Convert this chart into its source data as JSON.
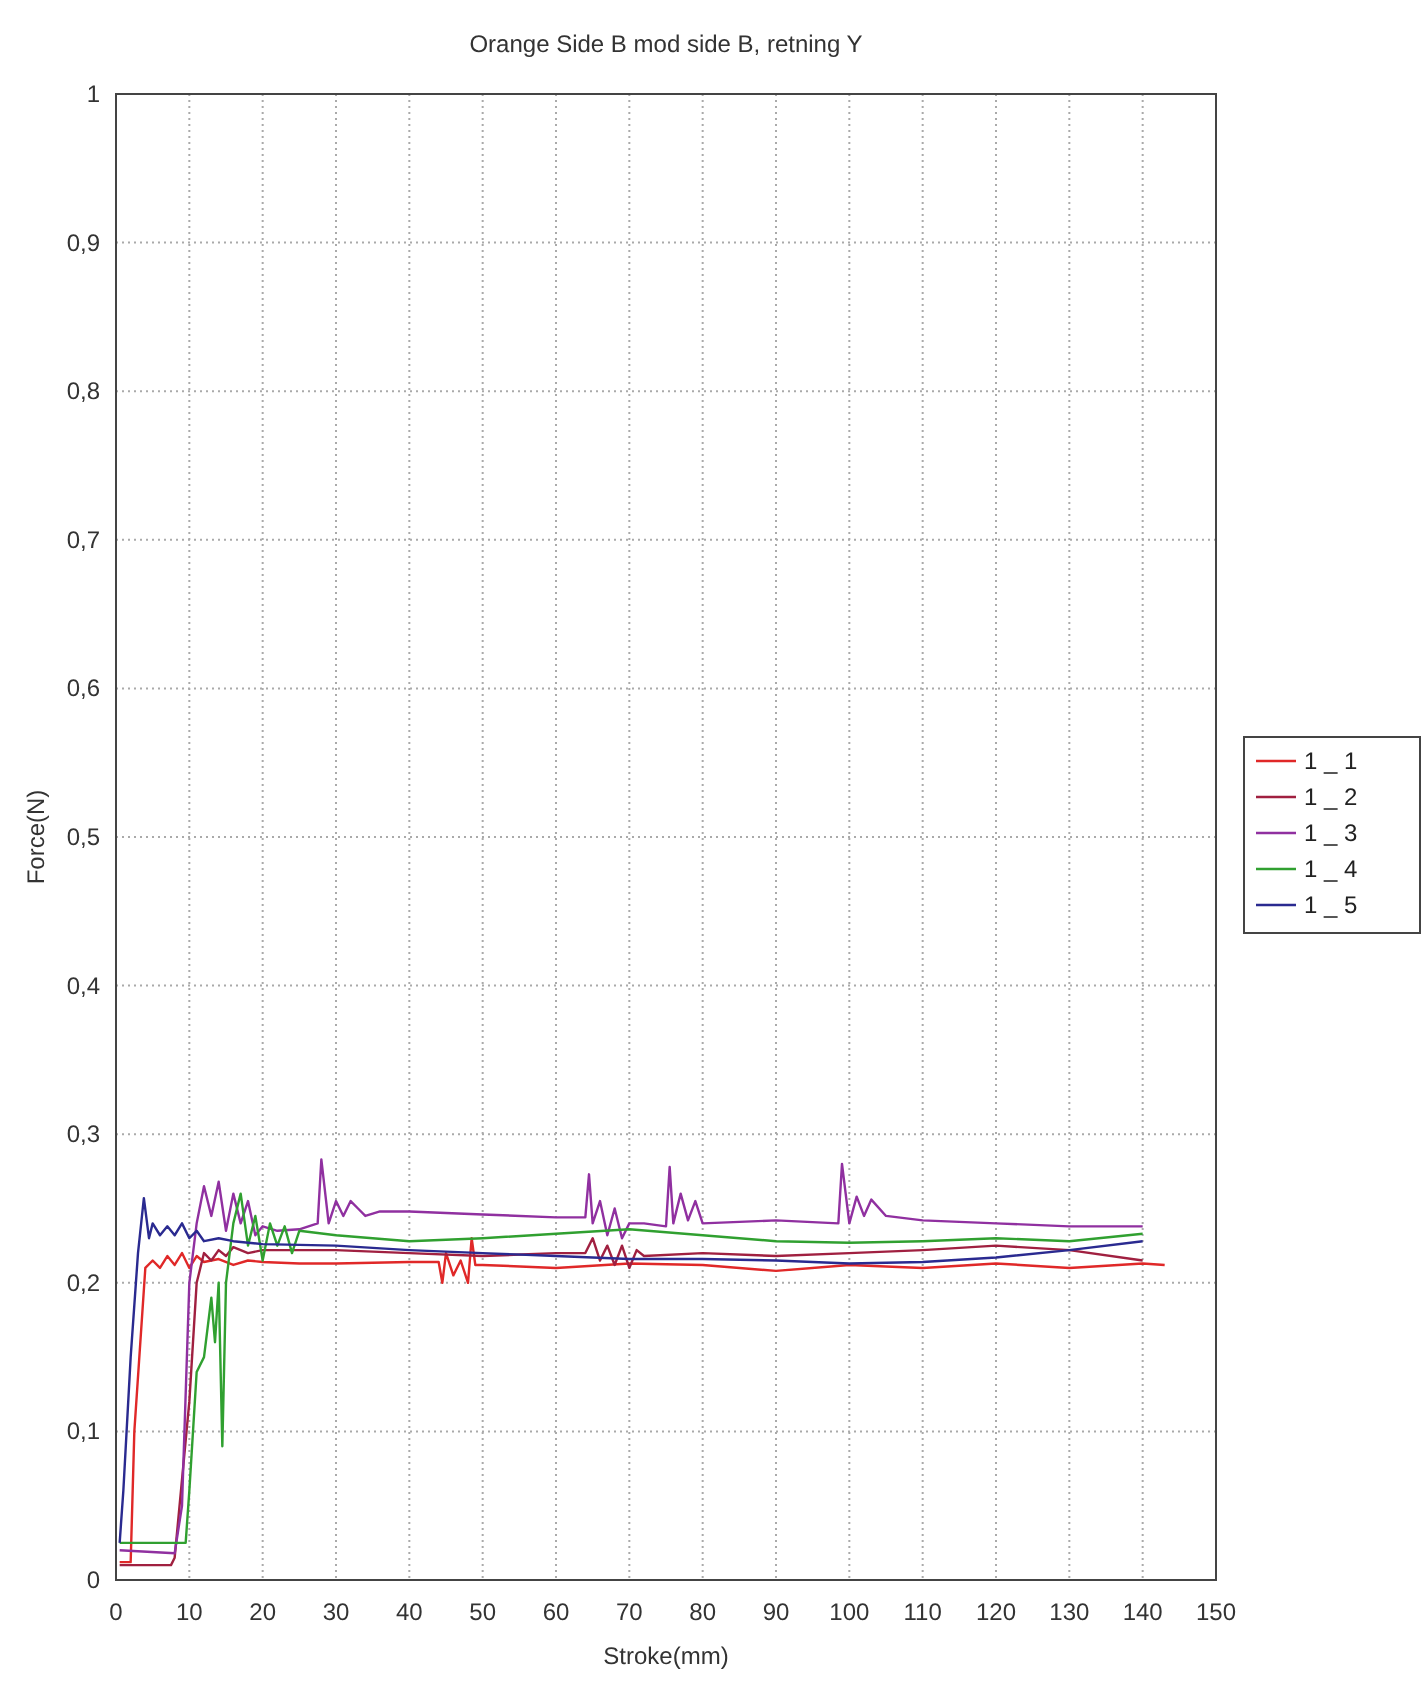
{
  "chart_data": {
    "type": "line",
    "title": "Orange Side B mod side B, retning Y",
    "xlabel": "Stroke(mm)",
    "ylabel": "Force(N)",
    "xlim": [
      0,
      150
    ],
    "xticks": [
      0,
      10,
      20,
      30,
      40,
      50,
      60,
      70,
      80,
      90,
      100,
      110,
      120,
      130,
      140,
      150
    ],
    "ylim": [
      0,
      1
    ],
    "yticks": [
      0,
      {
        "value": 0.1,
        "label": "0,1"
      },
      {
        "value": 0.2,
        "label": "0,2"
      },
      {
        "value": 0.3,
        "label": "0,3"
      },
      {
        "value": 0.4,
        "label": "0,4"
      },
      {
        "value": 0.5,
        "label": "0,5"
      },
      {
        "value": 0.6,
        "label": "0,6"
      },
      {
        "value": 0.7,
        "label": "0,7"
      },
      {
        "value": 0.8,
        "label": "0,8"
      },
      {
        "value": 0.9,
        "label": "0,9"
      },
      1
    ],
    "grid": true,
    "legend": "right",
    "line_style": "solid",
    "series": [
      {
        "name": "1 _ 1",
        "color": "#e02828",
        "x": [
          0.5,
          2,
          2.5,
          4,
          5,
          6,
          7,
          8,
          9,
          10,
          11,
          12,
          14,
          16,
          18,
          20,
          25,
          30,
          40,
          44,
          44.5,
          45,
          46,
          47,
          48,
          48.5,
          49,
          50,
          60,
          70,
          80,
          90,
          100,
          110,
          120,
          130,
          140,
          143
        ],
        "values": [
          0.012,
          0.012,
          0.1,
          0.21,
          0.215,
          0.21,
          0.218,
          0.212,
          0.22,
          0.21,
          0.218,
          0.214,
          0.216,
          0.212,
          0.215,
          0.214,
          0.213,
          0.213,
          0.214,
          0.214,
          0.2,
          0.22,
          0.205,
          0.215,
          0.2,
          0.23,
          0.212,
          0.212,
          0.21,
          0.213,
          0.212,
          0.208,
          0.212,
          0.21,
          0.213,
          0.21,
          0.213,
          0.212
        ]
      },
      {
        "name": "1 _ 2",
        "color": "#a02040",
        "x": [
          0.5,
          7.5,
          8,
          10,
          11,
          12,
          13,
          14,
          15,
          16,
          18,
          20,
          25,
          30,
          40,
          50,
          60,
          64,
          65,
          66,
          67,
          68,
          69,
          70,
          71,
          72,
          80,
          90,
          100,
          110,
          120,
          130,
          140
        ],
        "values": [
          0.01,
          0.01,
          0.015,
          0.12,
          0.2,
          0.22,
          0.215,
          0.222,
          0.218,
          0.224,
          0.22,
          0.222,
          0.222,
          0.222,
          0.22,
          0.218,
          0.22,
          0.22,
          0.23,
          0.215,
          0.225,
          0.212,
          0.225,
          0.21,
          0.222,
          0.218,
          0.22,
          0.218,
          0.22,
          0.222,
          0.225,
          0.222,
          0.215
        ]
      },
      {
        "name": "1 _ 3",
        "color": "#9030a0",
        "x": [
          0.5,
          8,
          9,
          10,
          11,
          12,
          13,
          14,
          15,
          16,
          17,
          18,
          19,
          20,
          22,
          25,
          27.5,
          28,
          29,
          30,
          31,
          32,
          33,
          34,
          36,
          40,
          50,
          60,
          64,
          64.5,
          65,
          66,
          67,
          68,
          69,
          70,
          72,
          75,
          75.5,
          76,
          77,
          78,
          79,
          80,
          90,
          98.5,
          99,
          100,
          101,
          102,
          103,
          105,
          110,
          120,
          130,
          140
        ],
        "values": [
          0.02,
          0.018,
          0.05,
          0.2,
          0.24,
          0.265,
          0.245,
          0.268,
          0.235,
          0.26,
          0.24,
          0.255,
          0.232,
          0.238,
          0.235,
          0.236,
          0.24,
          0.283,
          0.24,
          0.255,
          0.245,
          0.255,
          0.25,
          0.245,
          0.248,
          0.248,
          0.246,
          0.244,
          0.244,
          0.273,
          0.24,
          0.255,
          0.232,
          0.25,
          0.23,
          0.24,
          0.24,
          0.238,
          0.278,
          0.24,
          0.26,
          0.242,
          0.255,
          0.24,
          0.242,
          0.24,
          0.28,
          0.24,
          0.258,
          0.245,
          0.256,
          0.245,
          0.242,
          0.24,
          0.238,
          0.238
        ]
      },
      {
        "name": "1 _ 4",
        "color": "#30a030",
        "x": [
          0.5,
          9.5,
          10,
          11,
          12,
          13,
          13.5,
          14,
          14.5,
          15,
          16,
          17,
          18,
          19,
          20,
          21,
          22,
          23,
          24,
          25,
          30,
          40,
          50,
          60,
          70,
          80,
          90,
          100,
          110,
          120,
          130,
          140
        ],
        "values": [
          0.025,
          0.025,
          0.06,
          0.14,
          0.15,
          0.19,
          0.16,
          0.2,
          0.09,
          0.2,
          0.24,
          0.26,
          0.225,
          0.245,
          0.215,
          0.24,
          0.225,
          0.238,
          0.22,
          0.235,
          0.232,
          0.228,
          0.23,
          0.233,
          0.236,
          0.232,
          0.228,
          0.227,
          0.228,
          0.23,
          0.228,
          0.233
        ]
      },
      {
        "name": "1 _ 5",
        "color": "#2a2a90",
        "x": [
          0.5,
          1,
          2,
          3,
          3.8,
          4.5,
          5,
          6,
          7,
          8,
          9,
          10,
          11,
          12,
          14,
          16,
          20,
          30,
          40,
          50,
          60,
          70,
          80,
          90,
          100,
          110,
          120,
          130,
          140
        ],
        "values": [
          0.025,
          0.06,
          0.15,
          0.22,
          0.257,
          0.23,
          0.24,
          0.232,
          0.238,
          0.232,
          0.24,
          0.23,
          0.235,
          0.228,
          0.23,
          0.228,
          0.226,
          0.225,
          0.222,
          0.22,
          0.218,
          0.216,
          0.216,
          0.215,
          0.213,
          0.214,
          0.217,
          0.222,
          0.228
        ]
      }
    ]
  }
}
